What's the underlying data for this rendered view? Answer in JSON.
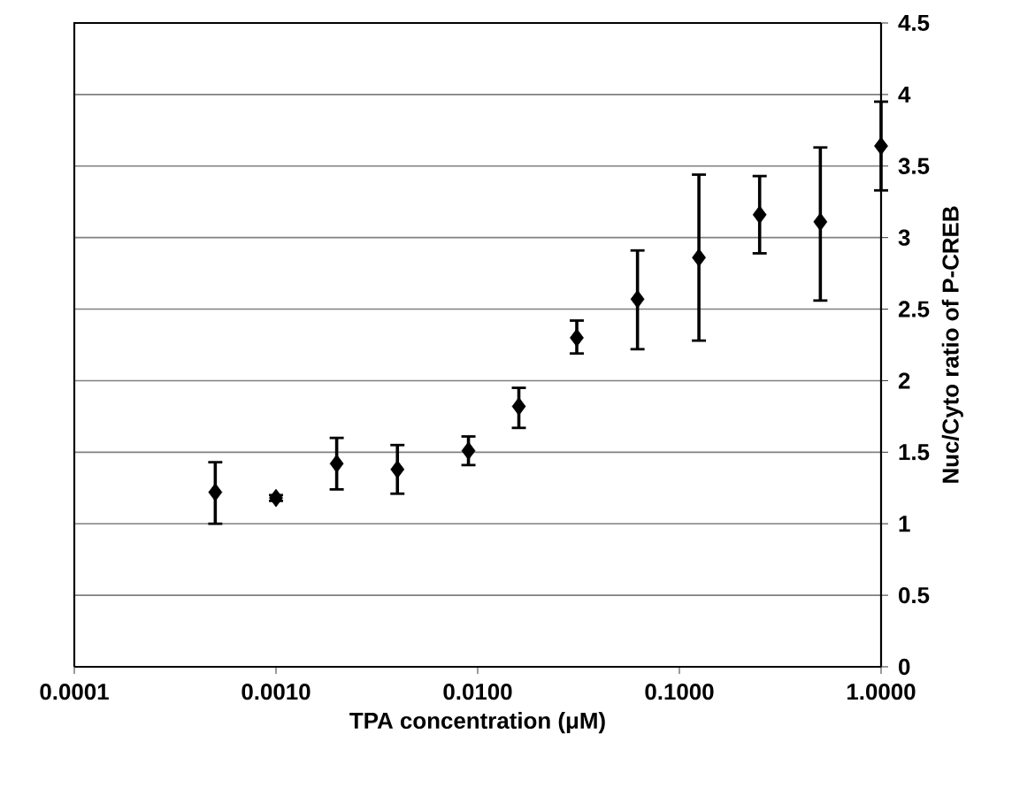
{
  "chart_data": {
    "type": "scatter",
    "xlabel": "TPA concentration (μM)",
    "ylabel": "Nuc/Cyto ratio of P-CREB",
    "x": [
      0.0005,
      0.001,
      0.002,
      0.004,
      0.009,
      0.016,
      0.031,
      0.062,
      0.125,
      0.25,
      0.5,
      1
    ],
    "values": [
      1.22,
      1.18,
      1.42,
      1.38,
      1.51,
      1.82,
      2.3,
      2.57,
      2.86,
      3.16,
      3.11,
      3.64
    ],
    "errors": [
      [
        1.0,
        1.43
      ],
      [
        1.16,
        1.2
      ],
      [
        1.24,
        1.6
      ],
      [
        1.21,
        1.55
      ],
      [
        1.41,
        1.61
      ],
      [
        1.67,
        1.95
      ],
      [
        2.19,
        2.42
      ],
      [
        2.22,
        2.91
      ],
      [
        2.28,
        3.44
      ],
      [
        2.89,
        3.43
      ],
      [
        2.56,
        3.63
      ],
      [
        3.33,
        3.95
      ]
    ],
    "color": "#000000",
    "marker": "diamond",
    "log": "x",
    "grid": "y",
    "xlim": [
      0.0001,
      1
    ],
    "ylim": [
      0,
      4.5
    ],
    "xticks": [
      {
        "value": 0.0001,
        "label": "0.0001"
      },
      {
        "value": 0.001,
        "label": "0.0010"
      },
      {
        "value": 0.01,
        "label": "0.0100"
      },
      {
        "value": 0.1,
        "label": "0.1000"
      },
      {
        "value": 1,
        "label": "1.0000"
      }
    ],
    "yticks": [
      0,
      0.5,
      1,
      1.5,
      2,
      2.5,
      3,
      3.5,
      4,
      4.5
    ]
  }
}
